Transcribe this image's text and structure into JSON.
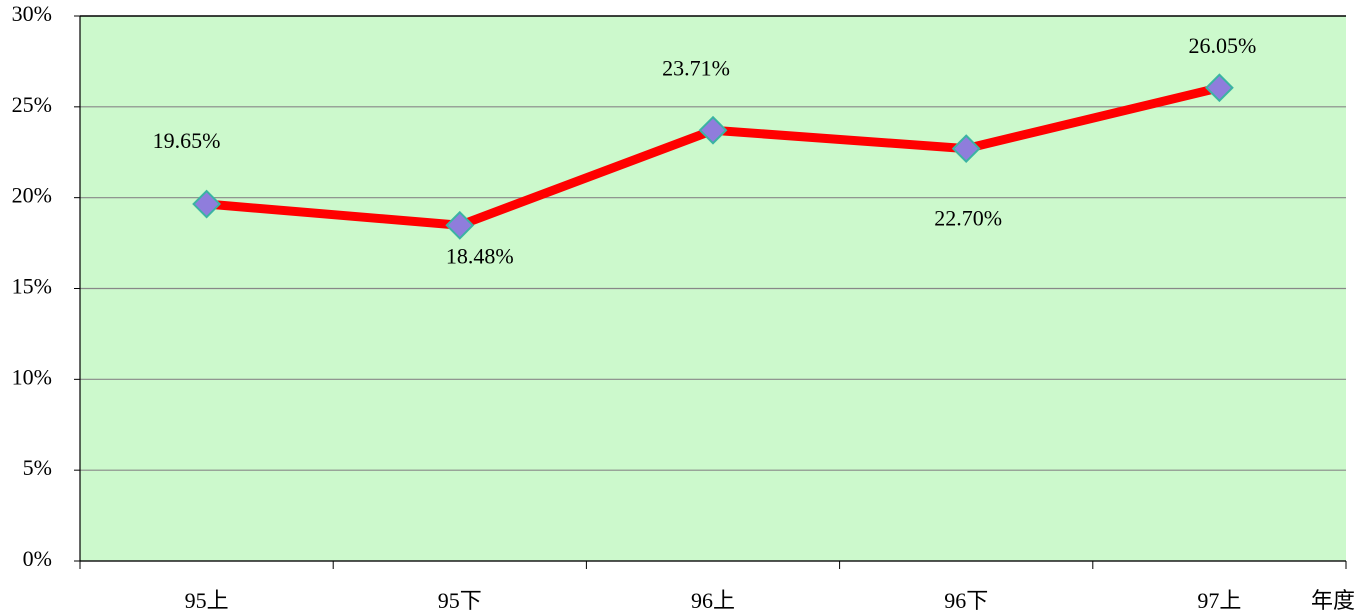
{
  "chart_data": {
    "type": "line",
    "x_label": "年度",
    "categories": [
      "95上",
      "95下",
      "96上",
      "96下",
      "97上"
    ],
    "series": [
      {
        "name": "",
        "color": "#ff0000",
        "marker_color": "#8f7ddc",
        "values": [
          19.65,
          18.48,
          23.71,
          22.7,
          26.05
        ],
        "value_labels": [
          "19.65%",
          "18.48%",
          "23.71%",
          "22.70%",
          "26.05%"
        ]
      }
    ],
    "ylim": [
      0,
      30
    ],
    "yticks": [
      {
        "value": 0,
        "label": "0%"
      },
      {
        "value": 5,
        "label": "5%"
      },
      {
        "value": 10,
        "label": "10%"
      },
      {
        "value": 15,
        "label": "15%"
      },
      {
        "value": 20,
        "label": "20%"
      },
      {
        "value": 25,
        "label": "25%"
      },
      {
        "value": 30,
        "label": "30%"
      }
    ],
    "grid": true,
    "background": "#ccf9cc"
  }
}
